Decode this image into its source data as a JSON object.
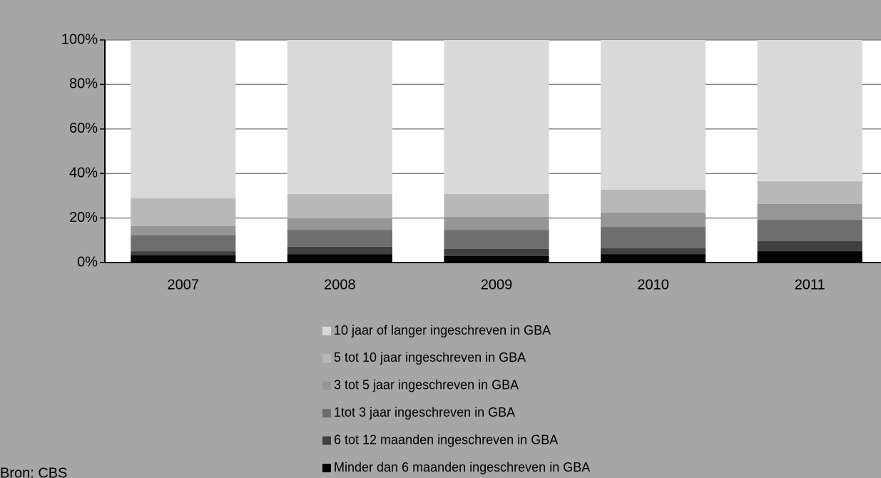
{
  "chart_data": {
    "type": "bar",
    "stacked": true,
    "categories": [
      "2007",
      "2008",
      "2009",
      "2010",
      "2011"
    ],
    "series": [
      {
        "name": "Minder dan 6 maanden ingeschreven in GBA",
        "color": "#000000",
        "values": [
          3.2,
          3.8,
          2.9,
          3.8,
          5.1
        ]
      },
      {
        "name": "6 tot 12 maanden ingeschreven in GBA",
        "color": "#404040",
        "values": [
          1.9,
          3.3,
          3.2,
          2.6,
          4.5
        ]
      },
      {
        "name": "1tot 3 jaar ingeschreven in GBA",
        "color": "#6e6e6e",
        "values": [
          7.2,
          7.6,
          8.6,
          9.6,
          9.6
        ]
      },
      {
        "name": "3 tot 5 jaar  ingeschreven in GBA",
        "color": "#969696",
        "values": [
          4.1,
          5.2,
          5.8,
          6.4,
          7.1
        ]
      },
      {
        "name": "5 tot 10 jaar  ingeschreven in GBA",
        "color": "#b8b8b8",
        "values": [
          12.5,
          10.9,
          10.3,
          10.3,
          10.2
        ]
      },
      {
        "name": "10 jaar of langer  ingeschreven in GBA",
        "color": "#d9d9d9",
        "values": [
          71.1,
          69.2,
          69.2,
          67.3,
          63.5
        ]
      }
    ],
    "ylim": [
      0,
      100
    ],
    "yticks": [
      {
        "value": 0,
        "label": "0%"
      },
      {
        "value": 20,
        "label": "20%"
      },
      {
        "value": 40,
        "label": "40%"
      },
      {
        "value": 60,
        "label": "60%"
      },
      {
        "value": 80,
        "label": "80%"
      },
      {
        "value": 100,
        "label": "100%"
      }
    ],
    "grid": true,
    "source": "Bron: CBS"
  }
}
